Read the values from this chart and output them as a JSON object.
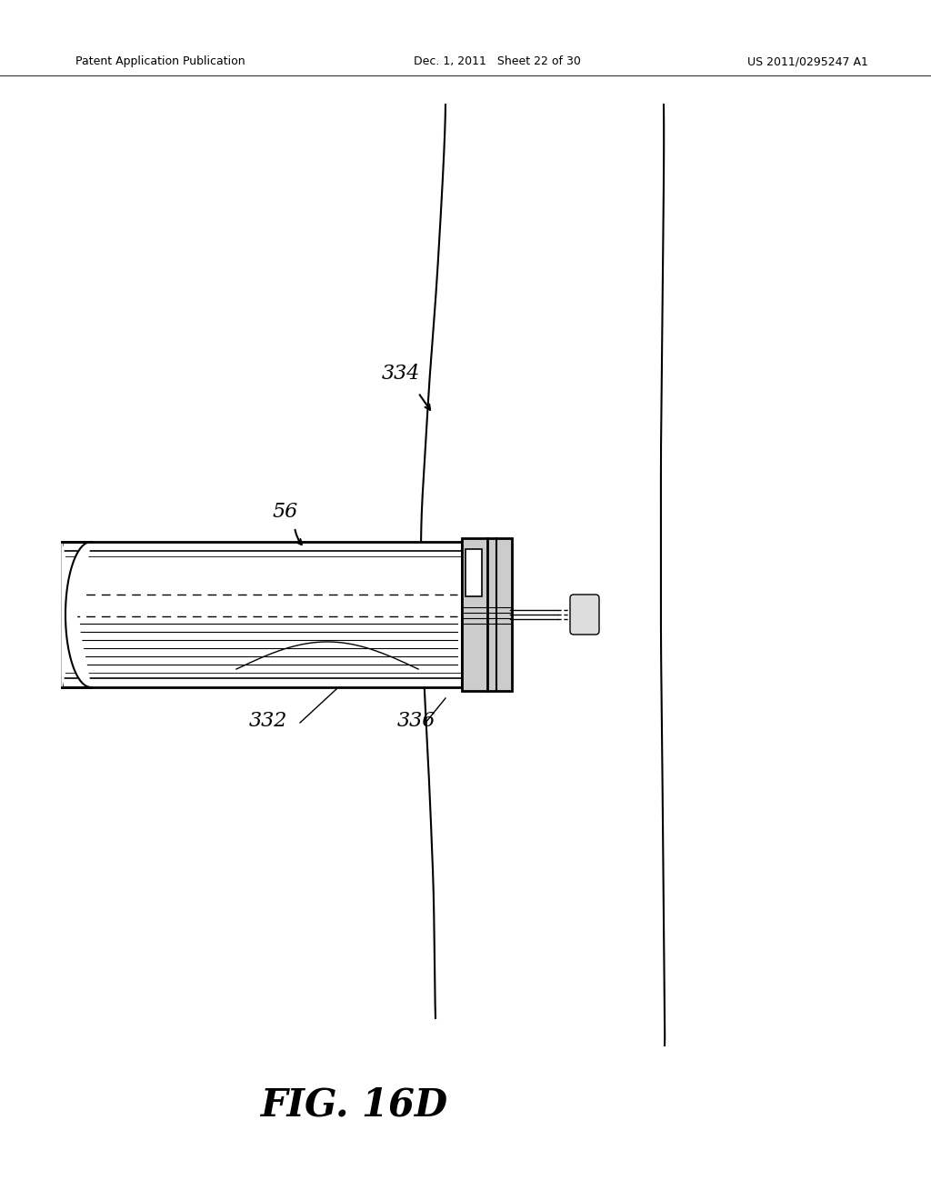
{
  "bg_color": "#ffffff",
  "header_left": "Patent Application Publication",
  "header_mid": "Dec. 1, 2011   Sheet 22 of 30",
  "header_right": "US 2011/0295247 A1",
  "figure_label": "FIG. 16D"
}
